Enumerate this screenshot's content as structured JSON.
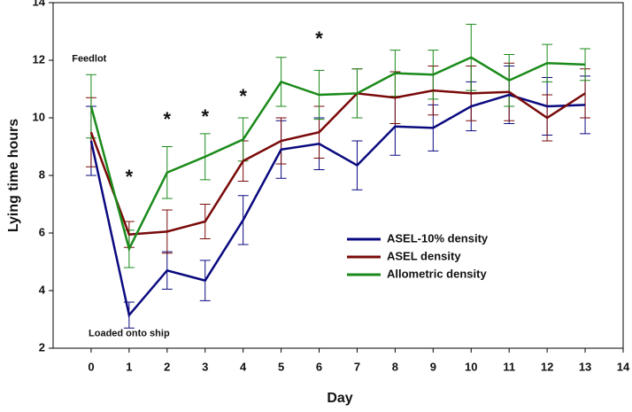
{
  "chart_data": {
    "type": "line",
    "xlabel": "Day",
    "ylabel": "Lying time hours",
    "xlim": [
      -1,
      14
    ],
    "xticks": [
      0,
      1,
      2,
      3,
      4,
      5,
      6,
      7,
      8,
      9,
      10,
      11,
      12,
      13,
      14
    ],
    "ylim": [
      2,
      14
    ],
    "yticks": [
      2,
      4,
      6,
      8,
      10,
      12,
      14
    ],
    "x": [
      0,
      1,
      2,
      3,
      4,
      5,
      6,
      7,
      8,
      9,
      10,
      11,
      12,
      13
    ],
    "legend": "center right",
    "series": [
      {
        "name": "ASEL-10% density",
        "color": "#0a0a80",
        "values": [
          9.2,
          3.15,
          4.7,
          4.35,
          6.45,
          8.9,
          9.1,
          8.35,
          9.7,
          9.65,
          10.4,
          10.8,
          10.4,
          10.45
        ],
        "errors": [
          1.2,
          0.45,
          0.65,
          0.7,
          0.85,
          1.0,
          0.9,
          0.85,
          1.0,
          0.8,
          0.85,
          1.0,
          1.0,
          1.0
        ]
      },
      {
        "name": "ASEL density",
        "color": "#7a0a0a",
        "values": [
          9.5,
          5.95,
          6.05,
          6.4,
          8.5,
          9.2,
          9.5,
          10.85,
          10.7,
          10.95,
          10.85,
          10.9,
          10.0,
          10.85
        ],
        "errors": [
          1.2,
          0.45,
          0.75,
          0.6,
          0.7,
          0.8,
          0.9,
          0.85,
          0.9,
          0.85,
          0.95,
          1.0,
          0.8,
          0.85
        ]
      },
      {
        "name": "Allometric density",
        "color": "#1a8a1a",
        "values": [
          10.4,
          5.45,
          8.1,
          8.65,
          9.25,
          11.25,
          10.8,
          10.85,
          11.55,
          11.5,
          12.1,
          11.3,
          11.9,
          11.85
        ],
        "errors": [
          1.1,
          0.65,
          0.9,
          0.8,
          0.75,
          0.85,
          0.85,
          0.85,
          0.8,
          0.85,
          1.15,
          0.9,
          0.65,
          0.55
        ]
      }
    ],
    "annotations": [
      {
        "text": "*",
        "x": 1,
        "y": 7.9
      },
      {
        "text": "*",
        "x": 2,
        "y": 9.9
      },
      {
        "text": "*",
        "x": 3,
        "y": 10.0
      },
      {
        "text": "*",
        "x": 4,
        "y": 10.7
      },
      {
        "text": "*",
        "x": 6,
        "y": 12.7
      },
      {
        "text": "Feedlot",
        "x": -0.05,
        "y": 12.05
      },
      {
        "text": "Loaded onto ship",
        "x": 1,
        "y": 2.5
      }
    ]
  }
}
